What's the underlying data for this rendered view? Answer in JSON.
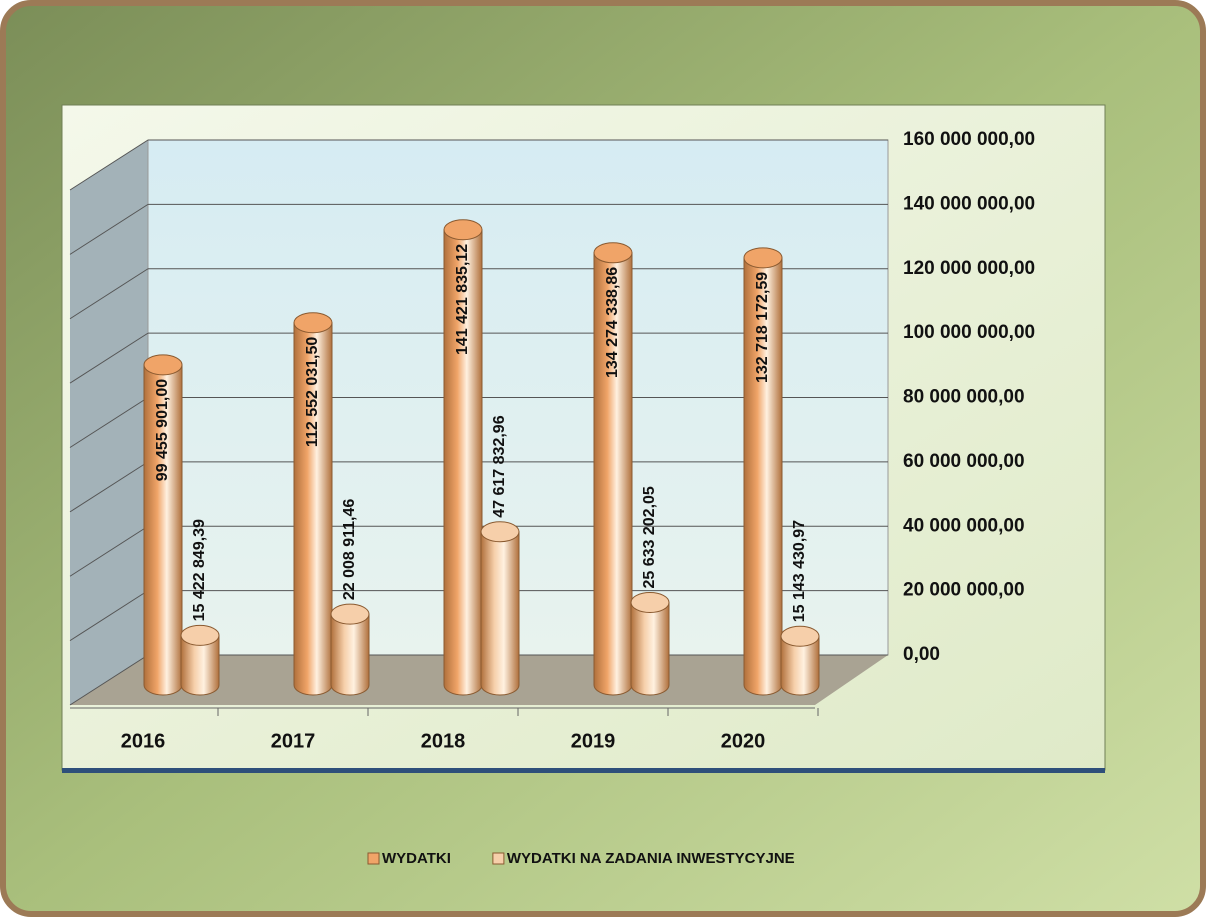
{
  "chart_data": {
    "type": "bar",
    "categories": [
      "2016",
      "2017",
      "2018",
      "2019",
      "2020"
    ],
    "series": [
      {
        "name": "WYDATKI",
        "color": "#f0a468",
        "values": [
          99455901.0,
          112552031.5,
          141421835.12,
          134274338.86,
          132718172.59
        ],
        "value_labels": [
          "99 455 901,00",
          "112 552 031,50",
          "141 421 835,12",
          "134 274 338,86",
          "132 718 172,59"
        ]
      },
      {
        "name": "WYDATKI NA ZADANIA INWESTYCYJNE",
        "color": "#f6cfaa",
        "values": [
          15422849.39,
          22008911.46,
          47617832.96,
          25633202.05,
          15143430.97
        ],
        "value_labels": [
          "15 422 849,39",
          "22 008 911,46",
          "47 617 832,96",
          "25 633 202,05",
          "15 143 430,97"
        ]
      }
    ],
    "ylim": [
      0,
      160000000
    ],
    "yticks": [
      {
        "value": 0,
        "label": "0,00"
      },
      {
        "value": 20000000,
        "label": "20 000 000,00"
      },
      {
        "value": 40000000,
        "label": "40 000 000,00"
      },
      {
        "value": 60000000,
        "label": "60 000 000,00"
      },
      {
        "value": 80000000,
        "label": "80 000 000,00"
      },
      {
        "value": 100000000,
        "label": "100 000 000,00"
      },
      {
        "value": 120000000,
        "label": "120 000 000,00"
      },
      {
        "value": 140000000,
        "label": "140 000 000,00"
      },
      {
        "value": 160000000,
        "label": "160 000 000,00"
      }
    ],
    "grid": true,
    "legend": "bottom",
    "three_d": true
  }
}
